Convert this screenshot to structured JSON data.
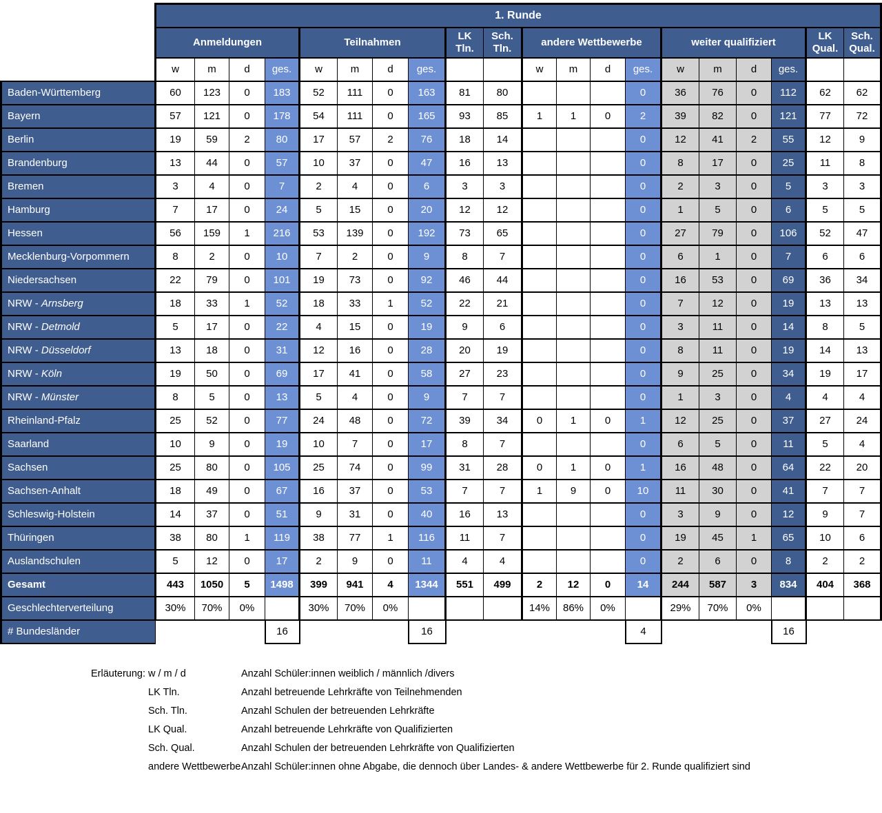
{
  "colors": {
    "header_blue": "#3F5D8F",
    "accent_blue": "#6D90D4",
    "cell_gray": "#D2D2D2"
  },
  "header": {
    "title": "1. Runde",
    "groups": [
      "Anmeldungen",
      "Teilnahmen",
      "LK\nTln.",
      "Sch.\nTln.",
      "andere Wettbewerbe",
      "weiter qualifiziert",
      "LK\nQual.",
      "Sch.\nQual."
    ],
    "sub": [
      "w",
      "m",
      "d",
      "ges."
    ]
  },
  "rows": [
    {
      "label": "Baden-Württemberg",
      "italic": "",
      "cells": [
        "60",
        "123",
        "0",
        "183",
        "52",
        "111",
        "0",
        "163",
        "81",
        "80",
        "",
        "",
        "",
        "0",
        "36",
        "76",
        "0",
        "112",
        "62",
        "62"
      ]
    },
    {
      "label": "Bayern",
      "italic": "",
      "cells": [
        "57",
        "121",
        "0",
        "178",
        "54",
        "111",
        "0",
        "165",
        "93",
        "85",
        "1",
        "1",
        "0",
        "2",
        "39",
        "82",
        "0",
        "121",
        "77",
        "72"
      ]
    },
    {
      "label": "Berlin",
      "italic": "",
      "cells": [
        "19",
        "59",
        "2",
        "80",
        "17",
        "57",
        "2",
        "76",
        "18",
        "14",
        "",
        "",
        "",
        "0",
        "12",
        "41",
        "2",
        "55",
        "12",
        "9"
      ]
    },
    {
      "label": "Brandenburg",
      "italic": "",
      "cells": [
        "13",
        "44",
        "0",
        "57",
        "10",
        "37",
        "0",
        "47",
        "16",
        "13",
        "",
        "",
        "",
        "0",
        "8",
        "17",
        "0",
        "25",
        "11",
        "8"
      ]
    },
    {
      "label": "Bremen",
      "italic": "",
      "cells": [
        "3",
        "4",
        "0",
        "7",
        "2",
        "4",
        "0",
        "6",
        "3",
        "3",
        "",
        "",
        "",
        "0",
        "2",
        "3",
        "0",
        "5",
        "3",
        "3"
      ]
    },
    {
      "label": "Hamburg",
      "italic": "",
      "cells": [
        "7",
        "17",
        "0",
        "24",
        "5",
        "15",
        "0",
        "20",
        "12",
        "12",
        "",
        "",
        "",
        "0",
        "1",
        "5",
        "0",
        "6",
        "5",
        "5"
      ]
    },
    {
      "label": "Hessen",
      "italic": "",
      "cells": [
        "56",
        "159",
        "1",
        "216",
        "53",
        "139",
        "0",
        "192",
        "73",
        "65",
        "",
        "",
        "",
        "0",
        "27",
        "79",
        "0",
        "106",
        "52",
        "47"
      ]
    },
    {
      "label": "Mecklenburg-Vorpommern",
      "italic": "",
      "cells": [
        "8",
        "2",
        "0",
        "10",
        "7",
        "2",
        "0",
        "9",
        "8",
        "7",
        "",
        "",
        "",
        "0",
        "6",
        "1",
        "0",
        "7",
        "6",
        "6"
      ]
    },
    {
      "label": "Niedersachsen",
      "italic": "",
      "cells": [
        "22",
        "79",
        "0",
        "101",
        "19",
        "73",
        "0",
        "92",
        "46",
        "44",
        "",
        "",
        "",
        "0",
        "16",
        "53",
        "0",
        "69",
        "36",
        "34"
      ]
    },
    {
      "label": "NRW - ",
      "italic": "Arnsberg",
      "cells": [
        "18",
        "33",
        "1",
        "52",
        "18",
        "33",
        "1",
        "52",
        "22",
        "21",
        "",
        "",
        "",
        "0",
        "7",
        "12",
        "0",
        "19",
        "13",
        "13"
      ]
    },
    {
      "label": "NRW - ",
      "italic": "Detmold",
      "cells": [
        "5",
        "17",
        "0",
        "22",
        "4",
        "15",
        "0",
        "19",
        "9",
        "6",
        "",
        "",
        "",
        "0",
        "3",
        "11",
        "0",
        "14",
        "8",
        "5"
      ]
    },
    {
      "label": "NRW - ",
      "italic": "Düsseldorf",
      "cells": [
        "13",
        "18",
        "0",
        "31",
        "12",
        "16",
        "0",
        "28",
        "20",
        "19",
        "",
        "",
        "",
        "0",
        "8",
        "11",
        "0",
        "19",
        "14",
        "13"
      ]
    },
    {
      "label": "NRW - ",
      "italic": "Köln",
      "cells": [
        "19",
        "50",
        "0",
        "69",
        "17",
        "41",
        "0",
        "58",
        "27",
        "23",
        "",
        "",
        "",
        "0",
        "9",
        "25",
        "0",
        "34",
        "19",
        "17"
      ]
    },
    {
      "label": "NRW - ",
      "italic": "Münster",
      "cells": [
        "8",
        "5",
        "0",
        "13",
        "5",
        "4",
        "0",
        "9",
        "7",
        "7",
        "",
        "",
        "",
        "0",
        "1",
        "3",
        "0",
        "4",
        "4",
        "4"
      ]
    },
    {
      "label": "Rheinland-Pfalz",
      "italic": "",
      "cells": [
        "25",
        "52",
        "0",
        "77",
        "24",
        "48",
        "0",
        "72",
        "39",
        "34",
        "0",
        "1",
        "0",
        "1",
        "12",
        "25",
        "0",
        "37",
        "27",
        "24"
      ]
    },
    {
      "label": "Saarland",
      "italic": "",
      "cells": [
        "10",
        "9",
        "0",
        "19",
        "10",
        "7",
        "0",
        "17",
        "8",
        "7",
        "",
        "",
        "",
        "0",
        "6",
        "5",
        "0",
        "11",
        "5",
        "4"
      ]
    },
    {
      "label": "Sachsen",
      "italic": "",
      "cells": [
        "25",
        "80",
        "0",
        "105",
        "25",
        "74",
        "0",
        "99",
        "31",
        "28",
        "0",
        "1",
        "0",
        "1",
        "16",
        "48",
        "0",
        "64",
        "22",
        "20"
      ]
    },
    {
      "label": "Sachsen-Anhalt",
      "italic": "",
      "cells": [
        "18",
        "49",
        "0",
        "67",
        "16",
        "37",
        "0",
        "53",
        "7",
        "7",
        "1",
        "9",
        "0",
        "10",
        "11",
        "30",
        "0",
        "41",
        "7",
        "7"
      ]
    },
    {
      "label": "Schleswig-Holstein",
      "italic": "",
      "cells": [
        "14",
        "37",
        "0",
        "51",
        "9",
        "31",
        "0",
        "40",
        "16",
        "13",
        "",
        "",
        "",
        "0",
        "3",
        "9",
        "0",
        "12",
        "9",
        "7"
      ]
    },
    {
      "label": "Thüringen",
      "italic": "",
      "cells": [
        "38",
        "80",
        "1",
        "119",
        "38",
        "77",
        "1",
        "116",
        "11",
        "7",
        "",
        "",
        "",
        "0",
        "19",
        "45",
        "1",
        "65",
        "10",
        "6"
      ]
    },
    {
      "label": "Auslandschulen",
      "italic": "",
      "cells": [
        "5",
        "12",
        "0",
        "17",
        "2",
        "9",
        "0",
        "11",
        "4",
        "4",
        "",
        "",
        "",
        "0",
        "2",
        "6",
        "0",
        "8",
        "2",
        "2"
      ]
    }
  ],
  "total_row": {
    "label": "Gesamt",
    "cells": [
      "443",
      "1050",
      "5",
      "1498",
      "399",
      "941",
      "4",
      "1344",
      "551",
      "499",
      "2",
      "12",
      "0",
      "14",
      "244",
      "587",
      "3",
      "834",
      "404",
      "368"
    ]
  },
  "gender_row": {
    "label": "Geschlechterverteilung",
    "cells": [
      "30%",
      "70%",
      "0%",
      "",
      "30%",
      "70%",
      "0%",
      "",
      "",
      "",
      "14%",
      "86%",
      "0%",
      "",
      "29%",
      "70%",
      "0%",
      "",
      "",
      ""
    ]
  },
  "count_row": {
    "label": "# Bundesländer",
    "anmeldungen": "16",
    "teilnahmen": "16",
    "andere_wettbewerbe": "4",
    "weiter_qualifiziert": "16"
  },
  "legend": {
    "intro": "Erläuterung:",
    "items": [
      {
        "term": "w / m / d",
        "definition": "Anzahl Schüler:innen weiblich / männlich /divers"
      },
      {
        "term": "LK Tln.",
        "definition": "Anzahl betreuende Lehrkräfte von Teilnehmenden"
      },
      {
        "term": "Sch. Tln.",
        "definition": "Anzahl Schulen der betreuenden Lehrkräfte"
      },
      {
        "term": "LK Qual.",
        "definition": "Anzahl betreuende Lehrkräfte von Qualifizierten"
      },
      {
        "term": "Sch. Qual.",
        "definition": "Anzahl Schulen der betreuenden Lehrkräfte von Qualifizierten"
      },
      {
        "term": "andere Wettbewerbe",
        "definition": "Anzahl Schüler:innen ohne Abgabe, die dennoch über Landes- & andere Wettbewerbe für 2. Runde qualifiziert sind"
      }
    ]
  }
}
